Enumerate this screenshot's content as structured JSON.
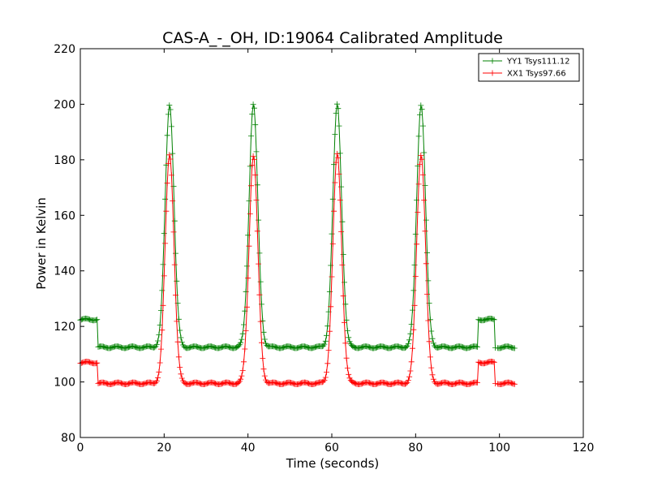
{
  "chart_data": {
    "type": "line",
    "title": "CAS-A_-_OH, ID:19064 Calibrated Amplitude",
    "xlabel": "Time (seconds)",
    "ylabel": "Power in Kelvin",
    "xlim": [
      0,
      120
    ],
    "ylim": [
      80,
      220
    ],
    "x_ticks": [
      0,
      20,
      40,
      60,
      80,
      100,
      120
    ],
    "y_ticks": [
      80,
      100,
      120,
      140,
      160,
      180,
      200,
      220
    ],
    "legend_position": "top-right",
    "grid": false,
    "series": [
      {
        "name": "YY1 Tsys111.12",
        "color": "#008000",
        "baseline": 112.5,
        "cal_level": 122.5,
        "cal_windows": [
          [
            0,
            4.2
          ],
          [
            95,
            99
          ]
        ],
        "gap": [
          99,
          99.6
        ],
        "peaks": [
          {
            "center": 21.3,
            "height": 200
          },
          {
            "center": 41.3,
            "height": 200
          },
          {
            "center": 61.3,
            "height": 200
          },
          {
            "center": 81.3,
            "height": 200
          }
        ],
        "x_end": 103.8
      },
      {
        "name": "XX1 Tsys97.66",
        "color": "#ff0000",
        "baseline": 99.5,
        "cal_level": 107,
        "cal_windows": [
          [
            0,
            4.2
          ],
          [
            95,
            99
          ]
        ],
        "gap": [
          99,
          99.6
        ],
        "peaks": [
          {
            "center": 21.3,
            "height": 182
          },
          {
            "center": 41.3,
            "height": 181.5
          },
          {
            "center": 61.3,
            "height": 182
          },
          {
            "center": 81.3,
            "height": 182
          }
        ],
        "x_end": 103.8
      }
    ]
  }
}
